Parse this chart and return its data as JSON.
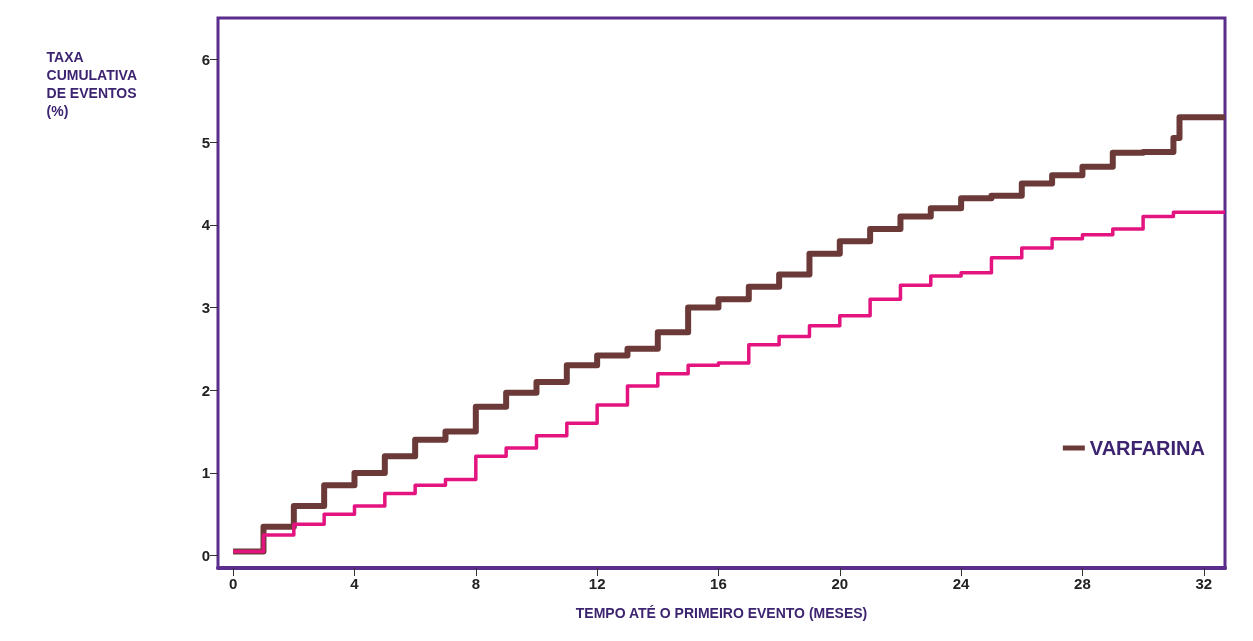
{
  "chart_data": {
    "type": "step",
    "xlabel": "TEMPO ATÉ O PRIMEIRO EVENTO (MESES)",
    "ylabel": "TAXA\nCUMULATIVA\nDE EVENTOS\n(%)",
    "xlim": [
      -0.5,
      32.7
    ],
    "xticks": [
      0,
      4,
      8,
      12,
      16,
      20,
      24,
      28,
      32
    ],
    "ylim": [
      -0.15,
      6.5
    ],
    "yticks": [
      0,
      1,
      2,
      3,
      4,
      5,
      6
    ],
    "grid": false,
    "legend": "bottom right",
    "marker": "none",
    "line_style": "solid",
    "series": [
      {
        "name": "VARFARINA",
        "color": "#6b3a38",
        "x": [
          0,
          1,
          2,
          3,
          4,
          5,
          6,
          7,
          8,
          9,
          10,
          11,
          12,
          13,
          14,
          15,
          16,
          17,
          18,
          19,
          20,
          21,
          22,
          23,
          24,
          25,
          26,
          27,
          28,
          29,
          30,
          31,
          31.2,
          32.7
        ],
        "values": [
          0.05,
          0.35,
          0.6,
          0.85,
          1.0,
          1.2,
          1.4,
          1.5,
          1.8,
          1.97,
          2.1,
          2.3,
          2.42,
          2.5,
          2.7,
          3.0,
          3.1,
          3.25,
          3.4,
          3.65,
          3.8,
          3.95,
          4.1,
          4.2,
          4.32,
          4.35,
          4.5,
          4.6,
          4.7,
          4.87,
          4.88,
          5.05,
          5.3,
          5.3
        ]
      },
      {
        "color": "#e3147f",
        "x": [
          0,
          1,
          2,
          3,
          4,
          5,
          6,
          7,
          8,
          9,
          10,
          11,
          12,
          13,
          14,
          15,
          16,
          17,
          18,
          19,
          20,
          21,
          22,
          23,
          24,
          25,
          26,
          27,
          28,
          29,
          30,
          31,
          32.7
        ],
        "values": [
          0.05,
          0.25,
          0.38,
          0.5,
          0.6,
          0.75,
          0.85,
          0.92,
          1.2,
          1.3,
          1.45,
          1.6,
          1.82,
          2.05,
          2.2,
          2.3,
          2.33,
          2.55,
          2.65,
          2.78,
          2.9,
          3.1,
          3.27,
          3.38,
          3.42,
          3.6,
          3.72,
          3.83,
          3.88,
          3.95,
          4.1,
          4.15,
          4.15
        ]
      }
    ]
  }
}
